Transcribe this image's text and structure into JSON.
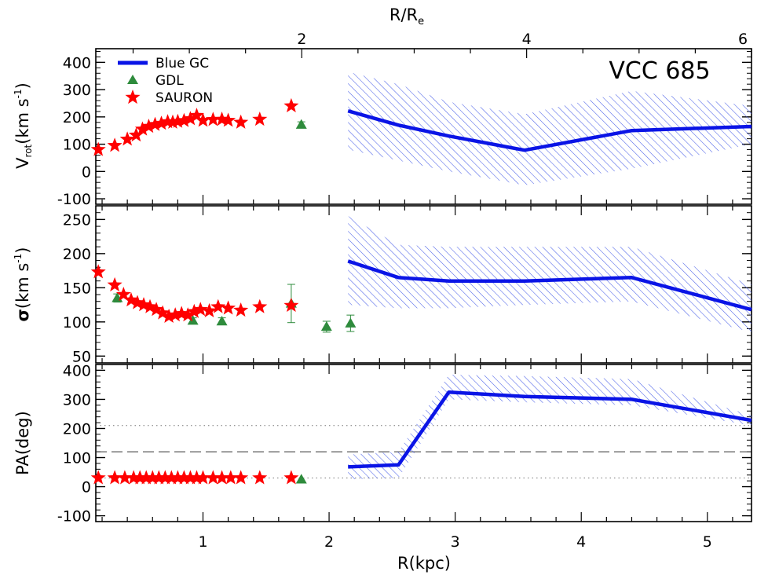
{
  "colors": {
    "blue_gc": "#0a14e6",
    "gdl": "#2e8b3c",
    "sauron": "#ff0000",
    "hatch": "#4a60e8",
    "axes": "#000000"
  },
  "icons": {
    "gdl": "triangle-icon",
    "sauron": "star-icon",
    "blue_gc": "line-icon"
  },
  "figure": {
    "object_label": "VCC 685",
    "legend": [
      "Blue GC",
      "GDL",
      "SAURON"
    ],
    "top_axis_label": "R/R",
    "top_axis_label_sub": "e",
    "top_ticks": [
      "2",
      "4",
      "6"
    ],
    "x_axis_label": "R(kpc)",
    "x_ticks": [
      "1",
      "2",
      "3",
      "4",
      "5"
    ],
    "panel1_ylabel_main": "V",
    "panel1_ylabel_sub": "rot",
    "panel1_ylabel_rest": "(km s",
    "panel1_ylabel_sup": "-1",
    "panel1_ylabel_close": ")",
    "panel2_ylabel_main": "σ",
    "panel2_ylabel_rest": "(km s",
    "panel2_ylabel_sup": "-1",
    "panel2_ylabel_close": ")",
    "panel3_ylabel": "PA(deg)"
  },
  "chart_data": [
    {
      "type": "line",
      "panel": "rotation",
      "xlim": [
        0.15,
        5.35
      ],
      "ylim": [
        -120,
        450
      ],
      "yticks": [
        -100,
        0,
        100,
        200,
        300,
        400
      ],
      "grid": false,
      "legend_position": "top-left",
      "series": [
        {
          "name": "Blue GC",
          "marker": "line",
          "x": [
            2.15,
            2.55,
            2.95,
            3.55,
            4.4,
            5.35
          ],
          "y": [
            222,
            170,
            130,
            78,
            150,
            165
          ],
          "band_low": [
            80,
            40,
            0,
            -50,
            10,
            100
          ],
          "band_high": [
            365,
            320,
            255,
            210,
            295,
            240
          ]
        },
        {
          "name": "GDL",
          "marker": "triangle",
          "x": [
            1.78
          ],
          "y": [
            172
          ],
          "err": [
            10
          ]
        },
        {
          "name": "SAURON",
          "marker": "star",
          "x": [
            0.17,
            0.3,
            0.4,
            0.47,
            0.52,
            0.57,
            0.62,
            0.67,
            0.72,
            0.76,
            0.8,
            0.85,
            0.9,
            0.95,
            1.0,
            1.08,
            1.15,
            1.2,
            1.3,
            1.45,
            1.7
          ],
          "y": [
            80,
            95,
            118,
            133,
            155,
            165,
            172,
            176,
            182,
            180,
            183,
            186,
            193,
            205,
            187,
            190,
            191,
            187,
            180,
            191,
            240
          ]
        }
      ]
    },
    {
      "type": "line",
      "panel": "dispersion",
      "xlim": [
        0.15,
        5.35
      ],
      "ylim": [
        40,
        270
      ],
      "yticks": [
        50,
        100,
        150,
        200,
        250
      ],
      "grid": false,
      "series": [
        {
          "name": "Blue GC",
          "marker": "line",
          "x": [
            2.15,
            2.55,
            2.95,
            3.55,
            4.4,
            5.35
          ],
          "y": [
            189,
            165,
            160,
            160,
            165,
            118
          ],
          "band_low": [
            125,
            120,
            120,
            125,
            130,
            85
          ],
          "band_high": [
            255,
            213,
            210,
            210,
            210,
            155
          ]
        },
        {
          "name": "GDL",
          "marker": "triangle",
          "x": [
            0.32,
            0.92,
            1.15,
            1.7,
            1.98,
            2.17
          ],
          "y": [
            135,
            102,
            101,
            127,
            93,
            98
          ],
          "err": [
            6,
            4,
            5,
            28,
            8,
            12
          ]
        },
        {
          "name": "SAURON",
          "marker": "star",
          "x": [
            0.17,
            0.3,
            0.37,
            0.43,
            0.48,
            0.53,
            0.58,
            0.63,
            0.68,
            0.73,
            0.78,
            0.83,
            0.88,
            0.93,
            0.98,
            1.05,
            1.12,
            1.2,
            1.3,
            1.45,
            1.7
          ],
          "y": [
            173,
            154,
            140,
            132,
            128,
            125,
            122,
            118,
            113,
            108,
            110,
            112,
            110,
            115,
            118,
            116,
            122,
            120,
            117,
            122,
            124
          ]
        }
      ]
    },
    {
      "type": "line",
      "panel": "position-angle",
      "xlim": [
        0.15,
        5.35
      ],
      "ylim": [
        -120,
        420
      ],
      "yticks": [
        -100,
        0,
        100,
        200,
        300,
        400
      ],
      "grid": false,
      "reference_lines": [
        {
          "style": "dotted",
          "y": 210
        },
        {
          "style": "dashed",
          "y": 120
        },
        {
          "style": "dotted",
          "y": 30
        }
      ],
      "series": [
        {
          "name": "Blue GC",
          "marker": "line",
          "x": [
            2.15,
            2.55,
            2.95,
            3.55,
            4.4,
            5.35
          ],
          "y": [
            68,
            75,
            325,
            310,
            300,
            228
          ],
          "band_low": [
            25,
            30,
            300,
            290,
            280,
            210
          ],
          "band_high": [
            110,
            120,
            385,
            380,
            370,
            245
          ]
        },
        {
          "name": "GDL",
          "marker": "triangle",
          "x": [
            1.78
          ],
          "y": [
            25
          ],
          "err": [
            0
          ]
        },
        {
          "name": "SAURON",
          "marker": "star",
          "x": [
            0.17,
            0.3,
            0.38,
            0.45,
            0.5,
            0.55,
            0.6,
            0.65,
            0.7,
            0.75,
            0.8,
            0.85,
            0.9,
            0.95,
            1.0,
            1.08,
            1.15,
            1.22,
            1.3,
            1.45,
            1.7
          ],
          "y": [
            30,
            30,
            30,
            30,
            30,
            30,
            30,
            30,
            30,
            30,
            30,
            30,
            30,
            30,
            30,
            30,
            30,
            30,
            30,
            30,
            30
          ]
        }
      ]
    }
  ]
}
